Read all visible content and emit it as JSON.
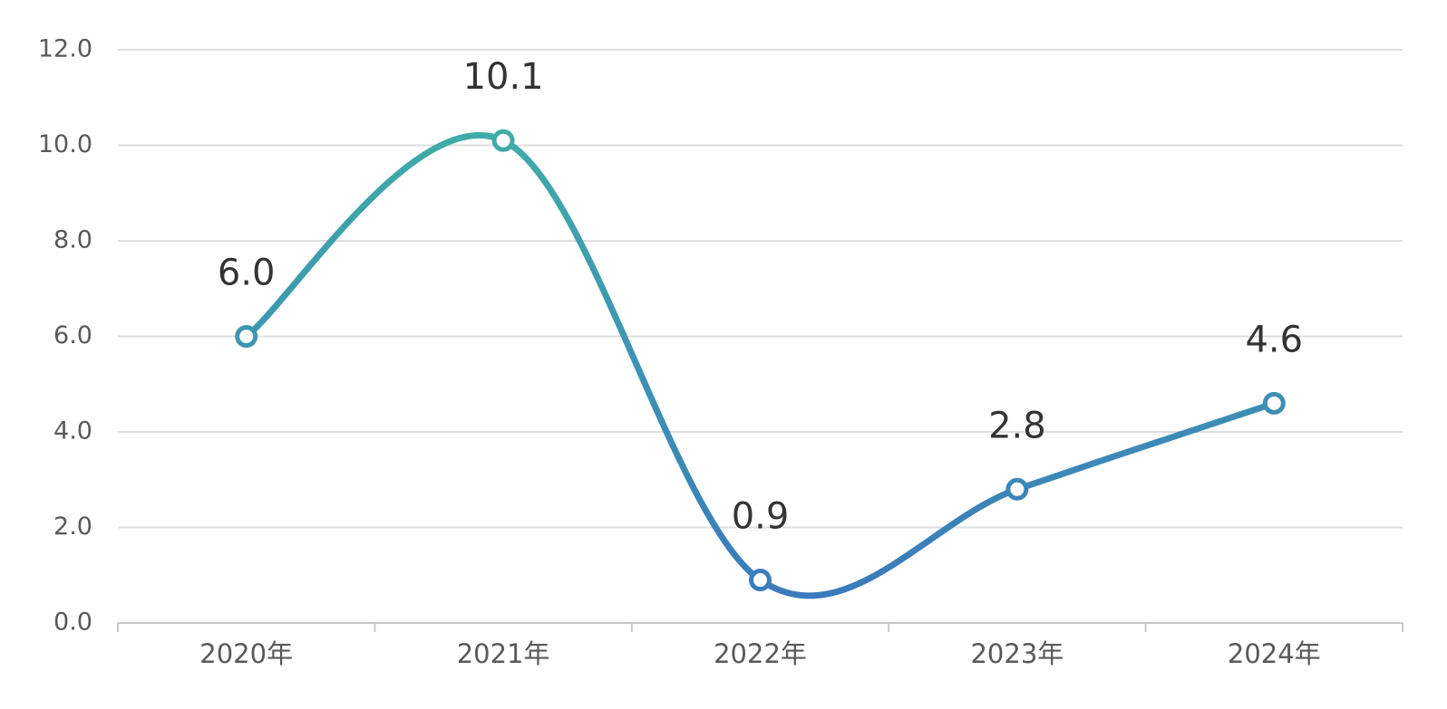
{
  "chart_data": {
    "type": "line",
    "categories": [
      "2020年",
      "2021年",
      "2022年",
      "2023年",
      "2024年"
    ],
    "values": [
      6.0,
      10.1,
      0.9,
      2.8,
      4.6
    ],
    "value_labels": [
      "6.0",
      "10.1",
      "0.9",
      "2.8",
      "4.6"
    ],
    "colors": [
      "#40b4a6",
      "#3a78bd"
    ],
    "smooth": true,
    "ylim": [
      0,
      12
    ],
    "yticks": [
      {
        "value": 0,
        "label": "0.0"
      },
      {
        "value": 2,
        "label": "2.0"
      },
      {
        "value": 4,
        "label": "4.0"
      },
      {
        "value": 6,
        "label": "6.0"
      },
      {
        "value": 8,
        "label": "8.0"
      },
      {
        "value": 10,
        "label": "10.0"
      },
      {
        "value": 12,
        "label": "12.0"
      }
    ],
    "grid": true
  }
}
